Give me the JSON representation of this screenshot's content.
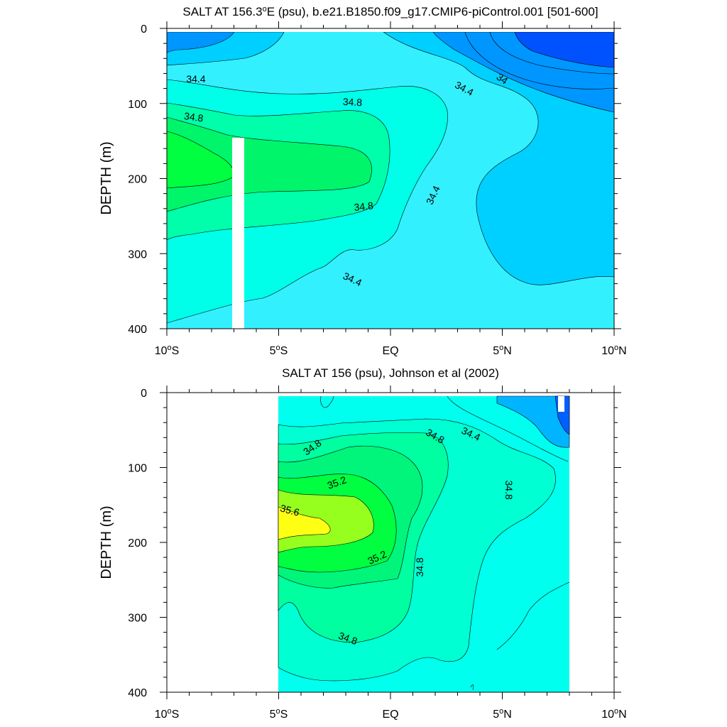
{
  "chart_data": [
    {
      "type": "contour",
      "title": "SALT AT 156.3",
      "title_deg": "o",
      "title_rest": "E (psu), b.e21.B1850.f09_g17.CMIP6-piControl.001 [501-600]",
      "ylabel": "DEPTH (m)",
      "xlim": [
        -10,
        10
      ],
      "ylim": [
        400,
        0
      ],
      "x_ticks": [
        {
          "value": -10,
          "pre": "10",
          "deg": "o",
          "post": "S"
        },
        {
          "value": -5,
          "pre": "5",
          "deg": "o",
          "post": "S"
        },
        {
          "value": 0,
          "pre": "EQ",
          "deg": "",
          "post": ""
        },
        {
          "value": 5,
          "pre": "5",
          "deg": "o",
          "post": "N"
        },
        {
          "value": 10,
          "pre": "10",
          "deg": "o",
          "post": "N"
        }
      ],
      "y_ticks": [
        0,
        100,
        200,
        300,
        400
      ],
      "colors": {
        "le_34.0": "#0052ff",
        "34.0_34.2": "#0096ff",
        "34.2_34.4": "#00d0ff",
        "34.4_34.6": "#33f0ff",
        "34.6_34.8": "#00ffe8",
        "34.8_35.0": "#00ffaa",
        "35.0_35.2": "#00f56a",
        "35.2_35.4": "#00ff40"
      },
      "contour_labels": [
        {
          "text": "34.4",
          "x": -8.7,
          "y": 67,
          "rotate": 0
        },
        {
          "text": "34.8",
          "x": -8.8,
          "y": 118,
          "rotate": 8
        },
        {
          "text": "34.8",
          "x": -1.7,
          "y": 98,
          "rotate": 3
        },
        {
          "text": "34.8",
          "x": -1.2,
          "y": 237,
          "rotate": -6
        },
        {
          "text": "34.4",
          "x": -1.7,
          "y": 334,
          "rotate": 25
        },
        {
          "text": "34.4",
          "x": 3.3,
          "y": 80,
          "rotate": 28
        },
        {
          "text": "34",
          "x": 5.0,
          "y": 67,
          "rotate": 35
        },
        {
          "text": "34.4",
          "x": 1.9,
          "y": 222,
          "rotate": -65
        }
      ]
    },
    {
      "type": "contour",
      "title": "SALT AT 156 (psu), Johnson et al (2002)",
      "ylabel": "DEPTH (m)",
      "xlim": [
        -10,
        10
      ],
      "ylim": [
        400,
        0
      ],
      "data_x_range": [
        -5,
        8
      ],
      "x_ticks": [
        {
          "value": -10,
          "pre": "10",
          "deg": "o",
          "post": "S"
        },
        {
          "value": -5,
          "pre": "5",
          "deg": "o",
          "post": "S"
        },
        {
          "value": 0,
          "pre": "EQ",
          "deg": "",
          "post": ""
        },
        {
          "value": 5,
          "pre": "5",
          "deg": "o",
          "post": "N"
        },
        {
          "value": 10,
          "pre": "10",
          "deg": "o",
          "post": "N"
        }
      ],
      "y_ticks": [
        0,
        100,
        200,
        300,
        400
      ],
      "colors": {
        "le_34.2": "#0060ff",
        "34.2_34.4": "#00b4ff",
        "34.4_34.6": "#00ffee",
        "34.6_34.8": "#00ffd2",
        "34.8_35.0": "#00ffa0",
        "35.0_35.2": "#00f57a",
        "35.2_35.4": "#00ff40",
        "35.4_35.6": "#96ff1e",
        "ge_35.6": "#ffff14"
      },
      "contour_labels": [
        {
          "text": "34.8",
          "x": -3.5,
          "y": 73,
          "rotate": -35
        },
        {
          "text": "35.2",
          "x": -2.4,
          "y": 120,
          "rotate": -20
        },
        {
          "text": "35.6",
          "x": -4.5,
          "y": 157,
          "rotate": 15
        },
        {
          "text": "35.2",
          "x": -0.6,
          "y": 220,
          "rotate": -25
        },
        {
          "text": "34.8",
          "x": 2.0,
          "y": 58,
          "rotate": 30
        },
        {
          "text": "34.4",
          "x": 3.6,
          "y": 55,
          "rotate": 25
        },
        {
          "text": "34.8",
          "x": 5.3,
          "y": 130,
          "rotate": 90
        },
        {
          "text": "34.8",
          "x": 1.3,
          "y": 233,
          "rotate": -90
        },
        {
          "text": "34.8",
          "x": -1.9,
          "y": 328,
          "rotate": 20
        }
      ]
    }
  ]
}
